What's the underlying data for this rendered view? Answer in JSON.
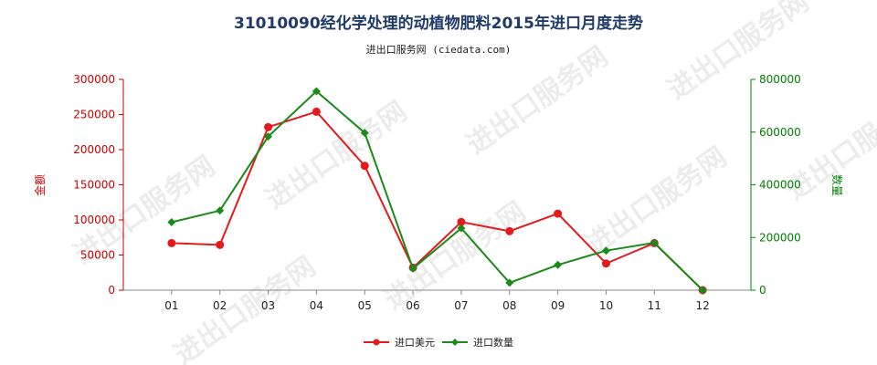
{
  "chart_data": {
    "type": "line",
    "title": "31010090经化学处理的动植物肥料2015年进口月度走势",
    "subtitle": "进出口服务网 (ciedata.com)",
    "watermark": "进出口服务网",
    "categories": [
      "01",
      "02",
      "03",
      "04",
      "05",
      "06",
      "07",
      "08",
      "09",
      "10",
      "11",
      "12"
    ],
    "y_left": {
      "label": "金额",
      "range": [
        0,
        300000
      ],
      "ticks": [
        "0",
        "50000",
        "100000",
        "150000",
        "200000",
        "250000",
        "300000"
      ],
      "color": "#cc0000"
    },
    "y_right": {
      "label": "数量",
      "range": [
        0,
        800000
      ],
      "ticks": [
        "0",
        "200000",
        "400000",
        "600000",
        "800000"
      ],
      "color": "#008000"
    },
    "series": [
      {
        "name": "进口美元",
        "axis": "left",
        "color": "#e41a1c",
        "values": [
          67000,
          64500,
          232000,
          254000,
          177000,
          32000,
          97000,
          84000,
          109000,
          38000,
          67000,
          0
        ]
      },
      {
        "name": "进口数量",
        "axis": "right",
        "color": "#1a8a1a",
        "values": [
          258000,
          302000,
          583000,
          755000,
          597000,
          82000,
          235000,
          28000,
          96000,
          150000,
          180000,
          0
        ]
      }
    ],
    "grid": false,
    "legend": "bottom-center"
  }
}
